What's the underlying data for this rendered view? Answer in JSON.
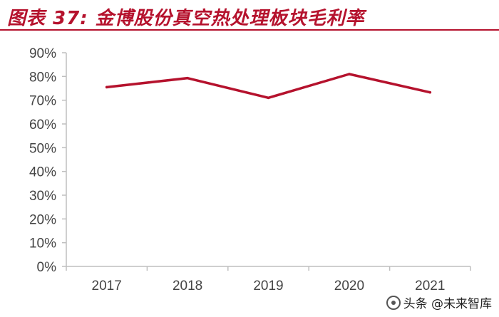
{
  "header": {
    "title": "图表 37:     金博股份真空热处理板块毛利率"
  },
  "colors": {
    "accent": "#b5122d",
    "line": "#b5122d",
    "axis": "#bfbfbf"
  },
  "watermark": {
    "text": "头条 @未来智库"
  },
  "chart_data": {
    "type": "line",
    "title": "图表 37:     金博股份真空热处理板块毛利率",
    "categories": [
      "2017",
      "2018",
      "2019",
      "2020",
      "2021"
    ],
    "series": [
      {
        "values": [
          75.5,
          79.3,
          71.0,
          81.0,
          73.3
        ]
      }
    ],
    "ylim": [
      0,
      90
    ],
    "yticks": [
      "0%",
      "10%",
      "20%",
      "30%",
      "40%",
      "50%",
      "60%",
      "70%",
      "80%",
      "90%"
    ],
    "grid": false,
    "legend": "none",
    "xlabel": "",
    "ylabel": ""
  }
}
